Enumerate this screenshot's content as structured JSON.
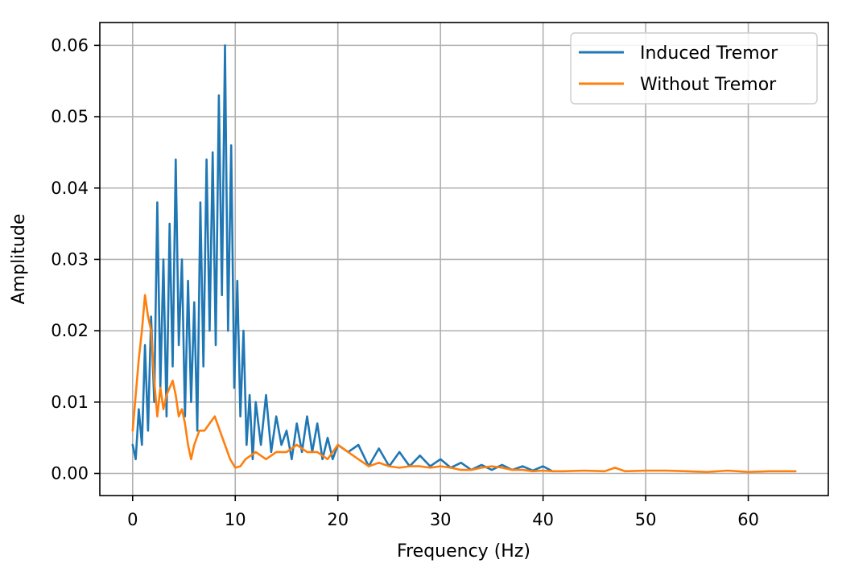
{
  "chart_data": {
    "type": "line",
    "title": "",
    "xlabel": "Frequency (Hz)",
    "ylabel": "Amplitude",
    "xlim": [
      -3.2,
      67.8
    ],
    "ylim": [
      -0.0031,
      0.0632
    ],
    "xticks": [
      0,
      10,
      20,
      30,
      40,
      50,
      60
    ],
    "xtick_labels": [
      "0",
      "10",
      "20",
      "30",
      "40",
      "50",
      "60"
    ],
    "yticks": [
      0,
      0.01,
      0.02,
      0.03,
      0.04,
      0.05,
      0.06
    ],
    "ytick_labels": [
      "0.00",
      "0.01",
      "0.02",
      "0.03",
      "0.04",
      "0.05",
      "0.06"
    ],
    "grid": true,
    "legend_position": "top-right",
    "series": [
      {
        "name": "Induced Tremor",
        "color": "#1f77b4",
        "x": [
          0,
          0.3,
          0.6,
          0.9,
          1.2,
          1.5,
          1.8,
          2.1,
          2.4,
          2.7,
          3.0,
          3.3,
          3.6,
          3.9,
          4.2,
          4.5,
          4.8,
          5.1,
          5.4,
          5.7,
          6.0,
          6.3,
          6.6,
          6.9,
          7.2,
          7.5,
          7.8,
          8.1,
          8.4,
          8.7,
          9.0,
          9.3,
          9.6,
          9.9,
          10.2,
          10.5,
          10.8,
          11.1,
          11.4,
          11.7,
          12.0,
          12.5,
          13.0,
          13.5,
          14.0,
          14.5,
          15.0,
          15.5,
          16.0,
          16.5,
          17.0,
          17.5,
          18.0,
          18.5,
          19.0,
          19.5,
          20.0,
          21.0,
          22.0,
          23.0,
          24.0,
          25.0,
          26.0,
          27.0,
          28.0,
          29.0,
          30.0,
          31.0,
          32.0,
          33.0,
          34.0,
          35.0,
          36.0,
          37.0,
          38.0,
          39.0,
          40.0,
          40.8
        ],
        "y": [
          0.004,
          0.002,
          0.009,
          0.004,
          0.018,
          0.006,
          0.022,
          0.01,
          0.038,
          0.012,
          0.03,
          0.008,
          0.035,
          0.015,
          0.044,
          0.018,
          0.03,
          0.008,
          0.027,
          0.01,
          0.024,
          0.006,
          0.038,
          0.015,
          0.044,
          0.02,
          0.045,
          0.018,
          0.053,
          0.025,
          0.06,
          0.02,
          0.046,
          0.012,
          0.027,
          0.008,
          0.02,
          0.004,
          0.011,
          0.002,
          0.01,
          0.004,
          0.011,
          0.003,
          0.008,
          0.004,
          0.006,
          0.002,
          0.007,
          0.003,
          0.008,
          0.003,
          0.007,
          0.002,
          0.005,
          0.002,
          0.004,
          0.003,
          0.004,
          0.001,
          0.0035,
          0.001,
          0.003,
          0.001,
          0.0025,
          0.001,
          0.002,
          0.0008,
          0.0015,
          0.0005,
          0.0012,
          0.0005,
          0.0012,
          0.0005,
          0.001,
          0.0004,
          0.001,
          0.0004
        ]
      },
      {
        "name": "Without Tremor",
        "color": "#ff7f0e",
        "x": [
          0,
          0.3,
          0.6,
          0.9,
          1.2,
          1.5,
          1.8,
          2.1,
          2.4,
          2.7,
          3.0,
          3.3,
          3.6,
          3.9,
          4.2,
          4.5,
          4.8,
          5.1,
          5.4,
          5.7,
          6.0,
          6.5,
          7.0,
          7.5,
          8.0,
          8.5,
          9.0,
          9.5,
          10.0,
          10.5,
          11.0,
          12.0,
          13.0,
          14.0,
          15.0,
          16.0,
          17.0,
          18.0,
          19.0,
          20.0,
          21.0,
          22.0,
          23.0,
          24.0,
          25.0,
          26.0,
          27.0,
          28.0,
          29.0,
          30.0,
          31.0,
          32.0,
          33.0,
          34.0,
          35.0,
          36.0,
          37.0,
          38.0,
          39.0,
          40.0,
          41.0,
          42.0,
          44.0,
          46.0,
          47.0,
          48.0,
          50.0,
          52.0,
          54.0,
          56.0,
          58.0,
          60.0,
          62.0,
          64.0,
          64.6
        ],
        "y": [
          0.006,
          0.011,
          0.016,
          0.02,
          0.025,
          0.022,
          0.02,
          0.013,
          0.008,
          0.012,
          0.009,
          0.011,
          0.012,
          0.013,
          0.011,
          0.008,
          0.009,
          0.007,
          0.004,
          0.002,
          0.004,
          0.006,
          0.006,
          0.007,
          0.008,
          0.006,
          0.004,
          0.002,
          0.0008,
          0.001,
          0.002,
          0.003,
          0.002,
          0.003,
          0.003,
          0.004,
          0.003,
          0.003,
          0.002,
          0.004,
          0.003,
          0.002,
          0.001,
          0.0015,
          0.001,
          0.0008,
          0.001,
          0.001,
          0.0008,
          0.001,
          0.0008,
          0.0005,
          0.0005,
          0.0008,
          0.001,
          0.0008,
          0.0005,
          0.0005,
          0.0003,
          0.0004,
          0.0003,
          0.0003,
          0.0004,
          0.0003,
          0.0008,
          0.0003,
          0.0004,
          0.0004,
          0.0003,
          0.0002,
          0.0004,
          0.0002,
          0.0003,
          0.0003,
          0.0003
        ]
      }
    ]
  }
}
